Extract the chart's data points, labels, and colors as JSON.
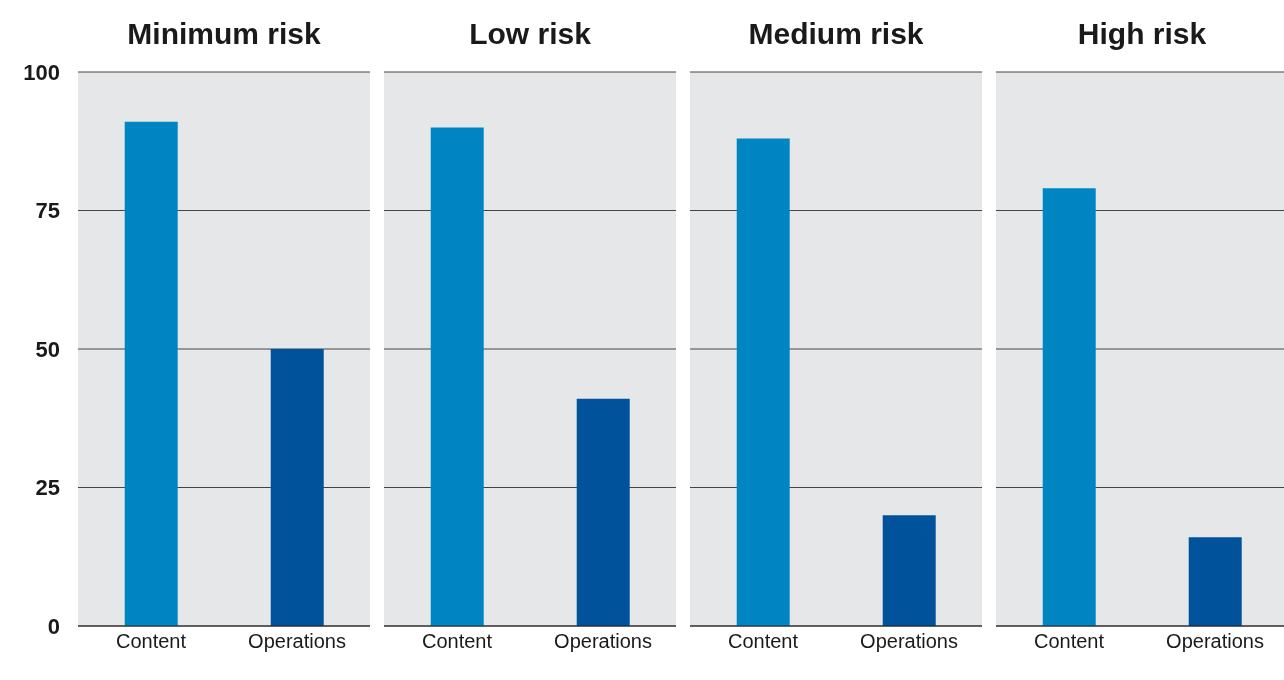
{
  "chart_data": [
    {
      "type": "bar",
      "title": "Minimum risk",
      "categories": [
        "Content",
        "Operations"
      ],
      "values": [
        91,
        50
      ],
      "colors": [
        "#0085c3",
        "#00539b"
      ],
      "ylim": [
        0,
        100
      ],
      "yticks": [
        0,
        25,
        50,
        75,
        100
      ],
      "grid": "y"
    },
    {
      "type": "bar",
      "title": "Low risk",
      "categories": [
        "Content",
        "Operations"
      ],
      "values": [
        90,
        41
      ],
      "colors": [
        "#0085c3",
        "#00539b"
      ],
      "ylim": [
        0,
        100
      ],
      "yticks": [
        0,
        25,
        50,
        75,
        100
      ],
      "grid": "y",
      "tick_labels": "x"
    },
    {
      "type": "bar",
      "title": "Medium risk",
      "categories": [
        "Content",
        "Operations"
      ],
      "values": [
        88,
        20
      ],
      "colors": [
        "#0085c3",
        "#00539b"
      ],
      "ylim": [
        0,
        100
      ],
      "yticks": [
        0,
        25,
        50,
        75,
        100
      ],
      "grid": "y",
      "tick_labels": "x"
    },
    {
      "type": "bar",
      "title": "High risk",
      "categories": [
        "Content",
        "Operations"
      ],
      "values": [
        79,
        16
      ],
      "colors": [
        "#0085c3",
        "#00539b"
      ],
      "ylim": [
        0,
        100
      ],
      "yticks": [
        0,
        25,
        50,
        75,
        100
      ],
      "grid": "y",
      "tick_labels": "x"
    }
  ]
}
